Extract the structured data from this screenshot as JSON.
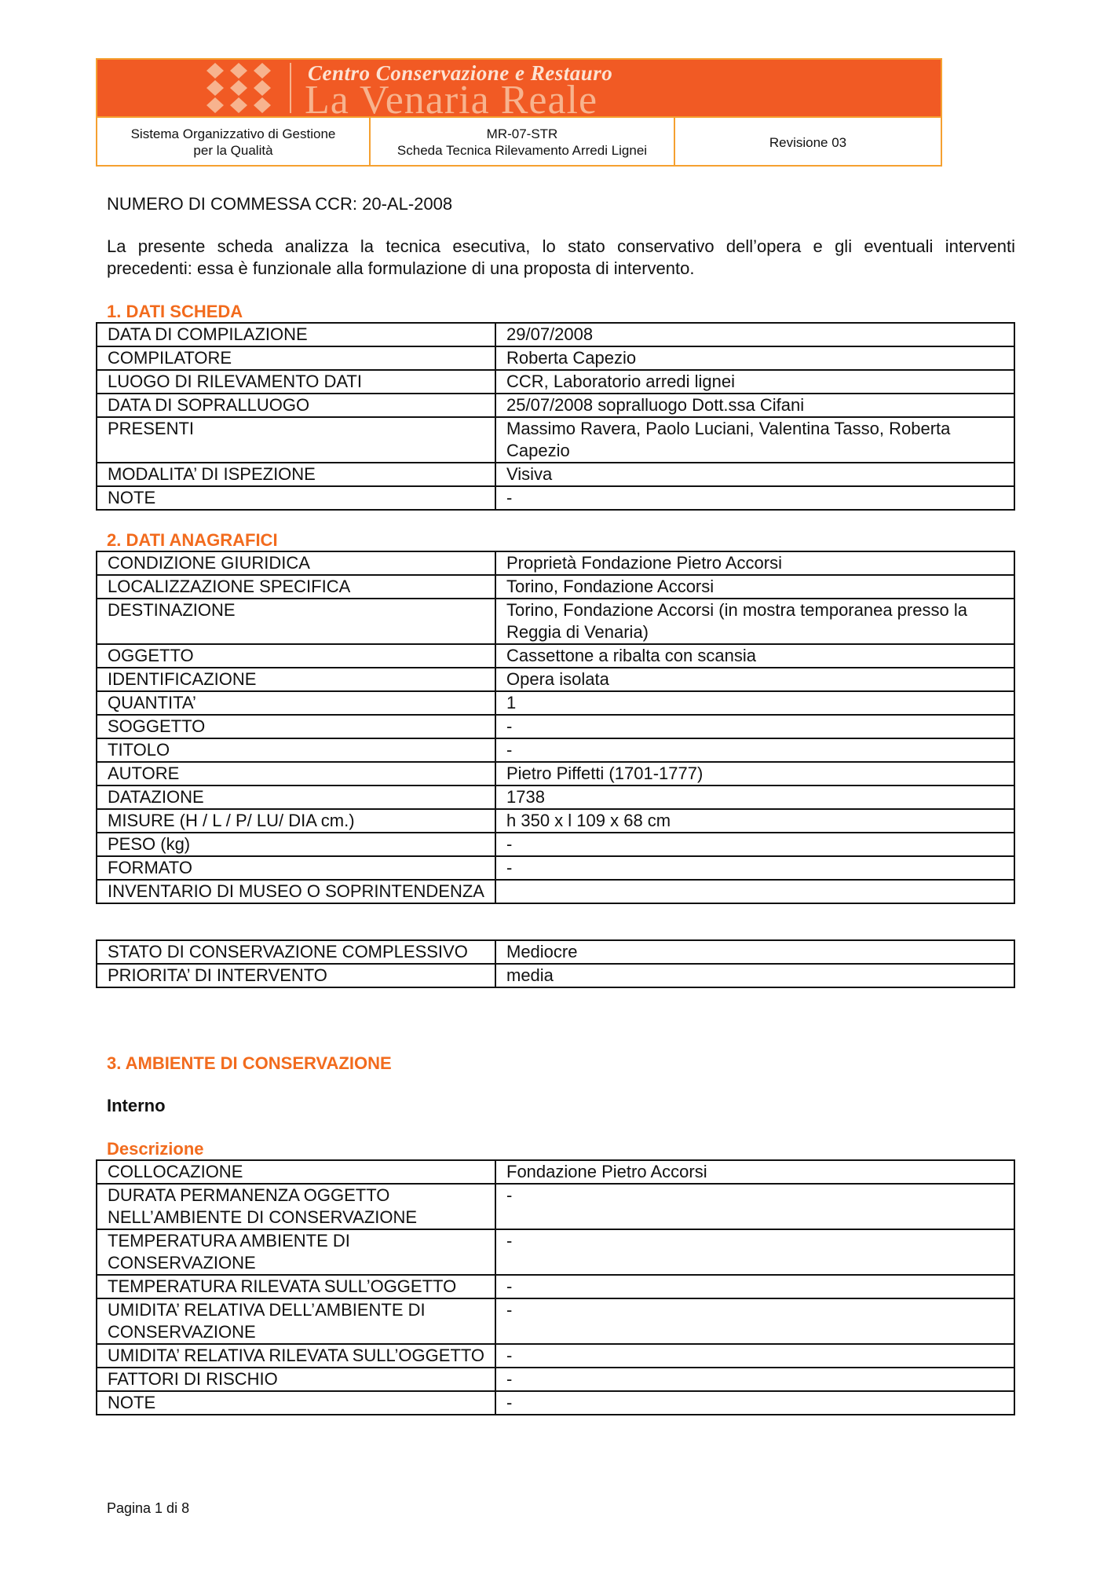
{
  "header": {
    "logo_line1": "Centro Conservazione e Restauro",
    "logo_line2": "La Venaria Reale",
    "cell1": [
      "Sistema Organizzativo di Gestione",
      "per la Qualità"
    ],
    "cell2": [
      "MR-07-STR",
      "Scheda Tecnica Rilevamento Arredi Lignei"
    ],
    "cell3": "Revisione 03",
    "accent": "#f15a24"
  },
  "commessa": "NUMERO DI COMMESSA CCR: 20-AL-2008",
  "intro": [
    "La presente scheda analizza la tecnica esecutiva, lo stato conservativo dell’opera e gli eventuali interventi",
    "precedenti: essa è funzionale alla formulazione di una proposta di intervento."
  ],
  "section1": {
    "title": "1.  DATI SCHEDA",
    "rows": [
      [
        "DATA DI COMPILAZIONE",
        "29/07/2008"
      ],
      [
        "COMPILATORE",
        "Roberta Capezio"
      ],
      [
        "LUOGO DI RILEVAMENTO DATI",
        "CCR, Laboratorio arredi lignei"
      ],
      [
        "DATA DI SOPRALLUOGO",
        "25/07/2008 sopralluogo Dott.ssa Cifani"
      ],
      [
        "PRESENTI",
        "Massimo Ravera, Paolo Luciani, Valentina Tasso, Roberta Capezio"
      ],
      [
        "MODALITA’ DI ISPEZIONE",
        "Visiva"
      ],
      [
        "NOTE",
        "-"
      ]
    ]
  },
  "section2": {
    "title": "2.  DATI ANAGRAFICI",
    "rows": [
      [
        "CONDIZIONE GIURIDICA",
        "Proprietà Fondazione Pietro Accorsi"
      ],
      [
        "LOCALIZZAZIONE SPECIFICA",
        "Torino, Fondazione Accorsi"
      ],
      [
        "DESTINAZIONE",
        "Torino, Fondazione Accorsi (in mostra temporanea presso la Reggia di Venaria)"
      ],
      [
        "OGGETTO",
        "Cassettone a ribalta con scansia"
      ],
      [
        "IDENTIFICAZIONE",
        "Opera isolata"
      ],
      [
        "QUANTITA’",
        "1"
      ],
      [
        "SOGGETTO",
        "-"
      ],
      [
        "TITOLO",
        "-"
      ],
      [
        "AUTORE",
        "Pietro Piffetti (1701-1777)"
      ],
      [
        "DATAZIONE",
        "1738"
      ],
      [
        "MISURE (H / L / P/ LU/ DIA cm.)",
        "h 350 x l 109 x 68 cm"
      ],
      [
        "PESO (kg)",
        "-"
      ],
      [
        "FORMATO",
        "-"
      ],
      [
        "INVENTARIO DI MUSEO O SOPRINTENDENZA",
        ""
      ]
    ]
  },
  "stato": {
    "rows": [
      [
        "STATO DI CONSERVAZIONE COMPLESSIVO",
        "Mediocre"
      ],
      [
        "PRIORITA’ DI INTERVENTO",
        "media"
      ]
    ]
  },
  "section3": {
    "title": "3. AMBIENTE DI CONSERVAZIONE",
    "subtitle": "Interno",
    "desc_title": "Descrizione",
    "rows": [
      [
        "COLLOCAZIONE",
        "Fondazione Pietro Accorsi"
      ],
      [
        "DURATA PERMANENZA OGGETTO NELL’AMBIENTE DI CONSERVAZIONE",
        "-"
      ],
      [
        "TEMPERATURA AMBIENTE DI CONSERVAZIONE",
        "-"
      ],
      [
        "TEMPERATURA RILEVATA SULL’OGGETTO",
        "-"
      ],
      [
        "UMIDITA’ RELATIVA DELL’AMBIENTE DI CONSERVAZIONE",
        "-"
      ],
      [
        "UMIDITA’ RELATIVA RILEVATA SULL’OGGETTO",
        "-"
      ],
      [
        "FATTORI DI RISCHIO",
        "-"
      ],
      [
        "NOTE",
        "-"
      ]
    ]
  },
  "footer": "Pagina 1 di 8"
}
